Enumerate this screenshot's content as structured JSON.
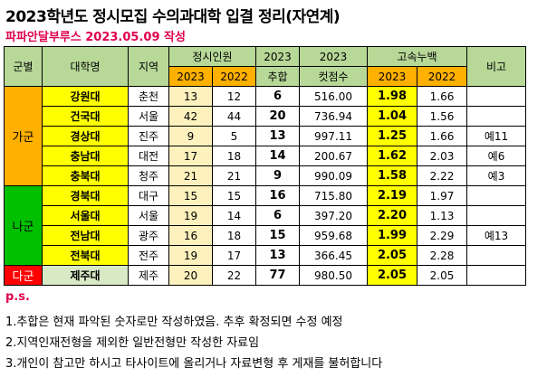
{
  "title": "2023학년도 정시모집 수의과대학 입결 정리(자연계)",
  "subtitle": "파파안달부루스 2023.05.09 작성",
  "headers": {
    "group": "군별",
    "university": "대학명",
    "region": "지역",
    "quota": "정시인원",
    "quota_2023": "2023",
    "quota_2022": "2022",
    "extra_year": "2023",
    "extra": "추합",
    "cut_year": "2023",
    "cut": "컷점수",
    "rank": "고속누백",
    "rank_2023": "2023",
    "rank_2022": "2022",
    "note": "비고"
  },
  "groups": [
    {
      "name": "가군",
      "rows": 5
    },
    {
      "name": "나군",
      "rows": 4
    },
    {
      "name": "다군",
      "rows": 1
    }
  ],
  "rows": [
    {
      "uni": "강원대",
      "region": "춘천",
      "q2023": "13",
      "q2022": "12",
      "extra": "6",
      "cut": "516.00",
      "r2023": "1.98",
      "r2022": "1.66",
      "note": ""
    },
    {
      "uni": "건국대",
      "region": "서울",
      "q2023": "42",
      "q2022": "44",
      "extra": "20",
      "cut": "736.94",
      "r2023": "1.04",
      "r2022": "1.56",
      "note": ""
    },
    {
      "uni": "경상대",
      "region": "진주",
      "q2023": "9",
      "q2022": "5",
      "extra": "13",
      "cut": "997.11",
      "r2023": "1.25",
      "r2022": "1.66",
      "note": "예11"
    },
    {
      "uni": "충남대",
      "region": "대전",
      "q2023": "17",
      "q2022": "18",
      "extra": "14",
      "cut": "200.67",
      "r2023": "1.62",
      "r2022": "2.03",
      "note": "예6"
    },
    {
      "uni": "충북대",
      "region": "청주",
      "q2023": "21",
      "q2022": "21",
      "extra": "9",
      "cut": "990.09",
      "r2023": "1.58",
      "r2022": "2.22",
      "note": "예3"
    },
    {
      "uni": "경북대",
      "region": "대구",
      "q2023": "15",
      "q2022": "15",
      "extra": "16",
      "cut": "715.80",
      "r2023": "2.19",
      "r2022": "1.97",
      "note": ""
    },
    {
      "uni": "서울대",
      "region": "서울",
      "q2023": "19",
      "q2022": "14",
      "extra": "6",
      "cut": "397.20",
      "r2023": "2.20",
      "r2022": "1.13",
      "note": ""
    },
    {
      "uni": "전남대",
      "region": "광주",
      "q2023": "16",
      "q2022": "18",
      "extra": "15",
      "cut": "959.68",
      "r2023": "1.99",
      "r2022": "2.29",
      "note": "예13"
    },
    {
      "uni": "전북대",
      "region": "전주",
      "q2023": "19",
      "q2022": "17",
      "extra": "13",
      "cut": "366.45",
      "r2023": "2.05",
      "r2022": "2.28",
      "note": ""
    },
    {
      "uni": "제주대",
      "region": "제주",
      "q2023": "20",
      "q2022": "22",
      "extra": "77",
      "cut": "980.50",
      "r2023": "2.05",
      "r2022": "2.05",
      "note": ""
    }
  ],
  "ps_label": "p.s.",
  "notes": [
    "1.추합은 현재 파악된 숫자로만 작성하였음. 추후 확정되면 수정 예정",
    "2.지역인재전형을 제외한 일반전형만 작성한 자료임",
    "3.개인이 참고만 하시고 타사이트에 올리거나 자료변형 후 게재를 불허합니다"
  ],
  "colors": {
    "group_ga": "#ffb000",
    "group_na": "#00c000",
    "group_da": "#ff0000",
    "header_green": "#b7d897",
    "header_orange": "#ffb000",
    "uni_cell": "#ffff00",
    "quota_cell": "#fdf2bd",
    "rank_cell": "#ffff00",
    "subtitle_red": "#e0004d"
  }
}
